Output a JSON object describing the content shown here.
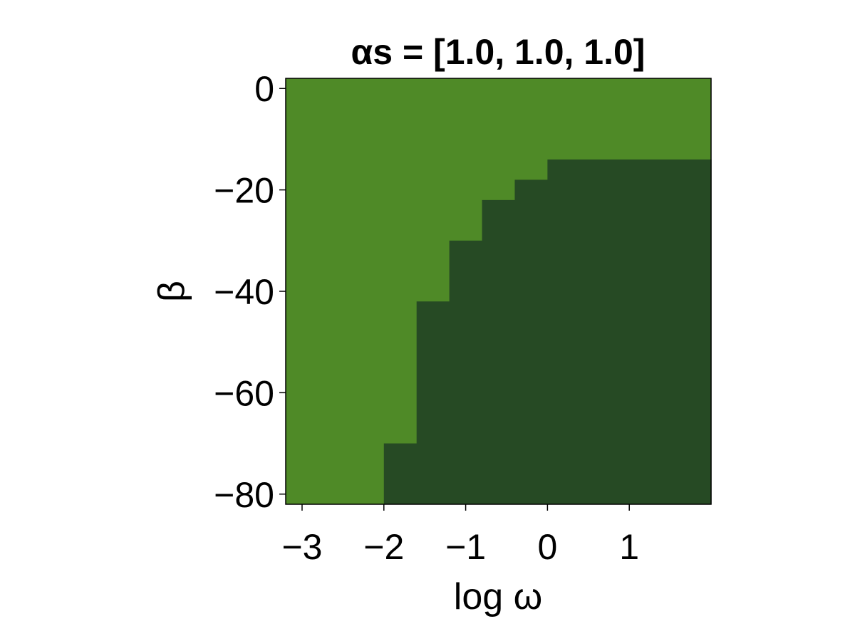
{
  "chart_data": {
    "type": "heatmap",
    "title": "αs = [1.0, 1.0, 1.0]",
    "xlabel": "log ω",
    "ylabel": "β",
    "xlim": [
      -3.2,
      2.0
    ],
    "ylim": [
      -82,
      2
    ],
    "x_ticks": [
      -3,
      -2,
      -1,
      0,
      1
    ],
    "x_tick_labels": [
      "−3",
      "−2",
      "−1",
      "0",
      "1"
    ],
    "y_ticks": [
      0,
      -20,
      -40,
      -60,
      -80
    ],
    "y_tick_labels": [
      "0",
      "−20",
      "−40",
      "−60",
      "−80"
    ],
    "grid": false,
    "categories": [
      "light-region",
      "dark-region"
    ],
    "colors": {
      "light": "#4f8a27",
      "dark": "#264a24",
      "frame": "#000000"
    },
    "boundary": {
      "description_of": "top edge of dark region as a function of log ω (dark region lies below this β)",
      "x_start": [
        -2.0,
        -1.6,
        -1.2,
        -0.8,
        -0.4,
        0.0
      ],
      "x_end": [
        -1.6,
        -1.2,
        -0.8,
        -0.4,
        0.0,
        2.0
      ],
      "beta_top": [
        -70,
        -42,
        -30,
        -22,
        -18,
        -14
      ]
    }
  }
}
